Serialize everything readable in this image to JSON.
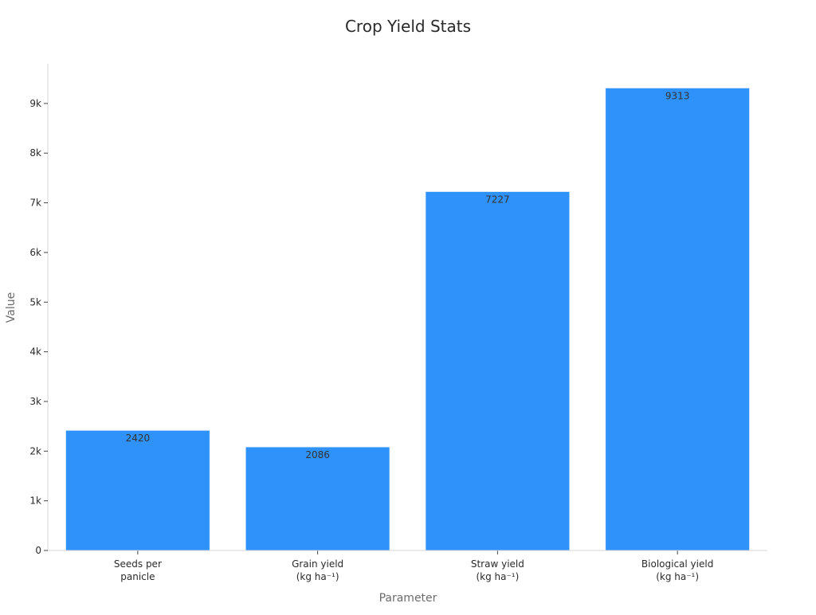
{
  "chart_data": {
    "type": "bar",
    "title": "Crop Yield Stats",
    "xlabel": "Parameter",
    "ylabel": "Value",
    "categories": [
      [
        "Seeds per",
        "panicle"
      ],
      [
        "Grain yield",
        "(kg ha⁻¹)"
      ],
      [
        "Straw yield",
        "(kg ha⁻¹)"
      ],
      [
        "Biological yield",
        "(kg ha⁻¹)"
      ]
    ],
    "values": [
      2420,
      2086,
      7227,
      9313
    ],
    "data_labels": [
      "2420",
      "2086",
      "7227",
      "9313"
    ],
    "ylim": [
      0,
      9800
    ],
    "yticks": [
      0,
      1000,
      2000,
      3000,
      4000,
      5000,
      6000,
      7000,
      8000,
      9000
    ],
    "ytick_labels": [
      "0",
      "1k",
      "2k",
      "3k",
      "4k",
      "5k",
      "6k",
      "7k",
      "8k",
      "9k"
    ],
    "bar_color": "#2f92fa",
    "grid": false,
    "legend": "none"
  }
}
